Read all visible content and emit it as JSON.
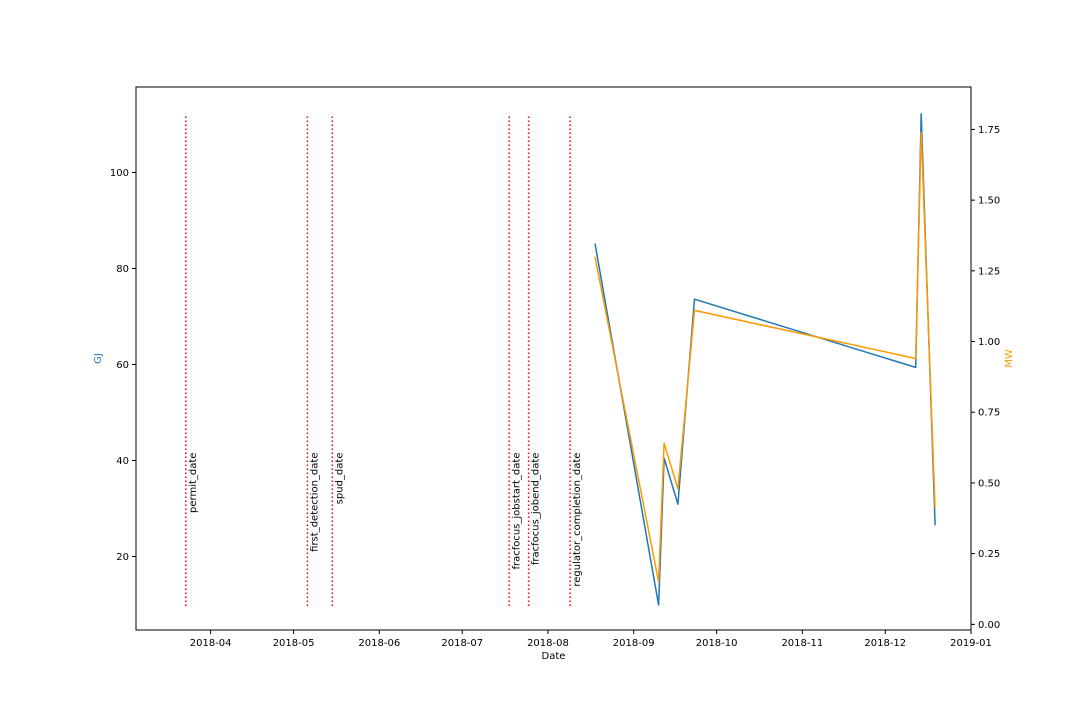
{
  "chart_data": {
    "type": "line",
    "xlabel": "Date",
    "y_left_label": "GJ",
    "y_right_label": "MW",
    "y_left_color": "#1f77b4",
    "y_right_color": "#ff9900",
    "event_line_color": "#ff0000",
    "x_range": [
      "2018-03-05",
      "2019-01-01"
    ],
    "y_left_range": [
      4.7,
      117.8
    ],
    "y_right_range": [
      -0.02,
      1.9
    ],
    "x_ticks": [
      {
        "date": "2018-04-01",
        "label": "2018-04"
      },
      {
        "date": "2018-05-01",
        "label": "2018-05"
      },
      {
        "date": "2018-06-01",
        "label": "2018-06"
      },
      {
        "date": "2018-07-01",
        "label": "2018-07"
      },
      {
        "date": "2018-08-01",
        "label": "2018-08"
      },
      {
        "date": "2018-09-01",
        "label": "2018-09"
      },
      {
        "date": "2018-10-01",
        "label": "2018-10"
      },
      {
        "date": "2018-11-01",
        "label": "2018-11"
      },
      {
        "date": "2018-12-01",
        "label": "2018-12"
      },
      {
        "date": "2019-01-01",
        "label": "2019-01"
      }
    ],
    "y_left_ticks": [
      {
        "value": 20,
        "label": "20"
      },
      {
        "value": 40,
        "label": "40"
      },
      {
        "value": 60,
        "label": "60"
      },
      {
        "value": 80,
        "label": "80"
      },
      {
        "value": 100,
        "label": "100"
      }
    ],
    "y_right_ticks": [
      {
        "value": 0.0,
        "label": "0.00"
      },
      {
        "value": 0.25,
        "label": "0.25"
      },
      {
        "value": 0.5,
        "label": "0.50"
      },
      {
        "value": 0.75,
        "label": "0.75"
      },
      {
        "value": 1.0,
        "label": "1.00"
      },
      {
        "value": 1.25,
        "label": "1.25"
      },
      {
        "value": 1.5,
        "label": "1.50"
      },
      {
        "value": 1.75,
        "label": "1.75"
      }
    ],
    "events": [
      {
        "label": "permit_date",
        "date": "2018-03-23"
      },
      {
        "label": "first_detection_date",
        "date": "2018-05-06"
      },
      {
        "label": "spud_date",
        "date": "2018-05-15"
      },
      {
        "label": "fracfocus_jobstart_date",
        "date": "2018-07-18"
      },
      {
        "label": "fracfocus_jobend_date",
        "date": "2018-07-25"
      },
      {
        "label": "regulator_completion_date",
        "date": "2018-08-09"
      }
    ],
    "event_line_y_range": [
      9.7,
      112.2
    ],
    "series": [
      {
        "axis": "left",
        "color": "#1f77b4",
        "points": [
          {
            "x": "2018-08-18",
            "y": 85.2
          },
          {
            "x": "2018-09-10",
            "y": 9.9
          },
          {
            "x": "2018-09-12",
            "y": 40.5
          },
          {
            "x": "2018-09-17",
            "y": 30.9
          },
          {
            "x": "2018-09-23",
            "y": 73.6
          },
          {
            "x": "2018-12-12",
            "y": 59.4
          },
          {
            "x": "2018-12-14",
            "y": 112.2
          },
          {
            "x": "2018-12-19",
            "y": 26.5
          }
        ]
      },
      {
        "axis": "right",
        "color": "#ff9900",
        "points": [
          {
            "x": "2018-08-18",
            "y": 1.3
          },
          {
            "x": "2018-09-10",
            "y": 0.15
          },
          {
            "x": "2018-09-12",
            "y": 0.64
          },
          {
            "x": "2018-09-17",
            "y": 0.48
          },
          {
            "x": "2018-09-23",
            "y": 1.11
          },
          {
            "x": "2018-12-12",
            "y": 0.94
          },
          {
            "x": "2018-12-14",
            "y": 1.74
          },
          {
            "x": "2018-12-19",
            "y": 0.41
          }
        ]
      }
    ]
  }
}
